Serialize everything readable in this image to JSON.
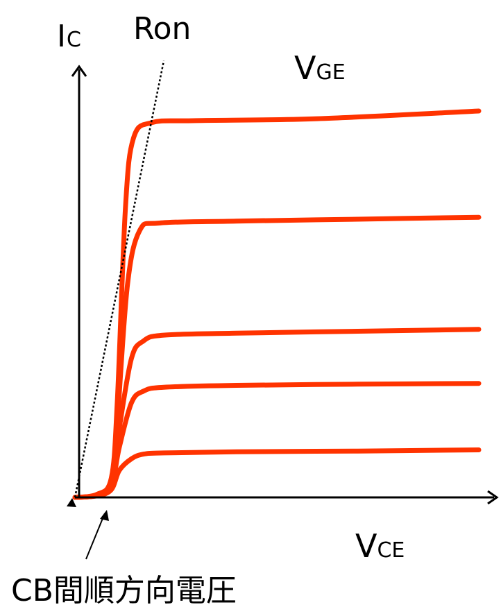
{
  "chart_data": {
    "type": "line",
    "title": "",
    "xlabel": {
      "main": "V",
      "sub": "CE"
    },
    "ylabel": {
      "main": "I",
      "sub": "C"
    },
    "legend_label": {
      "main": "V",
      "sub": "GE"
    },
    "ron_label": "Ron",
    "forward_voltage_label": "CB間順方向電圧",
    "grid": false,
    "curve_color": "#ff3300",
    "axis_color": "#000000",
    "xlim": [
      0,
      10
    ],
    "ylim": [
      0,
      10
    ],
    "knee_voltage": 0.9,
    "ron_line": [
      [
        0,
        0
      ],
      [
        2.2,
        11.3
      ]
    ],
    "series": [
      {
        "values": [
          [
            0,
            0
          ],
          [
            0.55,
            0.08
          ],
          [
            0.9,
            0.5
          ],
          [
            1.05,
            2.5
          ],
          [
            1.25,
            7.5
          ],
          [
            1.45,
            9.3
          ],
          [
            1.9,
            9.7
          ],
          [
            3,
            9.75
          ],
          [
            6,
            9.8
          ],
          [
            10,
            10.0
          ]
        ]
      },
      {
        "values": [
          [
            0,
            0
          ],
          [
            0.55,
            0.07
          ],
          [
            0.9,
            0.45
          ],
          [
            1.05,
            2.0
          ],
          [
            1.3,
            5.5
          ],
          [
            1.6,
            6.9
          ],
          [
            2.1,
            7.1
          ],
          [
            4,
            7.15
          ],
          [
            7,
            7.2
          ],
          [
            10,
            7.25
          ]
        ]
      },
      {
        "values": [
          [
            0,
            0
          ],
          [
            0.55,
            0.06
          ],
          [
            0.9,
            0.35
          ],
          [
            1.1,
            1.8
          ],
          [
            1.4,
            3.6
          ],
          [
            1.7,
            4.05
          ],
          [
            2.2,
            4.2
          ],
          [
            4,
            4.25
          ],
          [
            7,
            4.3
          ],
          [
            10,
            4.35
          ]
        ]
      },
      {
        "values": [
          [
            0,
            0
          ],
          [
            0.55,
            0.05
          ],
          [
            0.9,
            0.3
          ],
          [
            1.1,
            1.3
          ],
          [
            1.4,
            2.45
          ],
          [
            1.7,
            2.75
          ],
          [
            2.2,
            2.85
          ],
          [
            4,
            2.9
          ],
          [
            7,
            2.93
          ],
          [
            10,
            2.95
          ]
        ]
      },
      {
        "values": [
          [
            0,
            0
          ],
          [
            0.55,
            0.04
          ],
          [
            0.9,
            0.2
          ],
          [
            1.1,
            0.7
          ],
          [
            1.4,
            1.0
          ],
          [
            1.7,
            1.12
          ],
          [
            2.2,
            1.15
          ],
          [
            4,
            1.18
          ],
          [
            7,
            1.2
          ],
          [
            10,
            1.23
          ]
        ]
      }
    ]
  }
}
